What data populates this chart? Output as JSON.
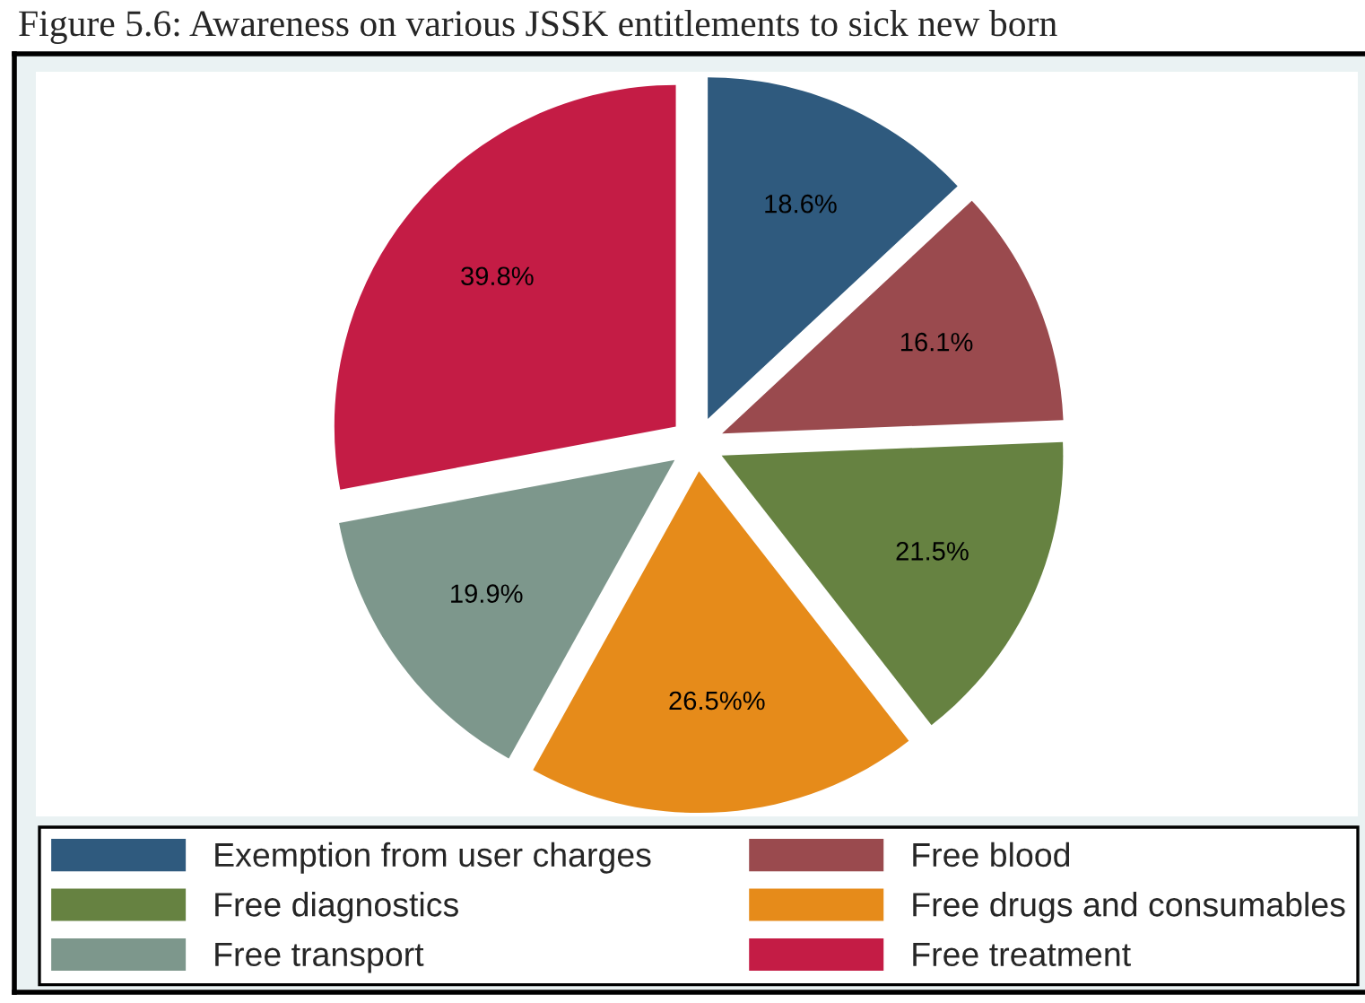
{
  "chart_data": {
    "type": "pie",
    "title": "Figure 5.6: Awareness on various JSSK entitlements to sick new born",
    "categories": [
      "Exemption from user charges",
      "Free blood",
      "Free diagnostics",
      "Free drugs and consumables",
      "Free transport",
      "Free treatment"
    ],
    "values": [
      18.6,
      16.1,
      21.5,
      26.5,
      19.9,
      39.8
    ],
    "colors": [
      "#2f5a7e",
      "#9a4a4e",
      "#668241",
      "#e68b1a",
      "#7d978c",
      "#c41c45"
    ],
    "value_labels": [
      "18.6%",
      "16.1%",
      "21.5%",
      "26.5%%",
      "19.9%",
      "39.8%"
    ],
    "legend": "bottom"
  }
}
